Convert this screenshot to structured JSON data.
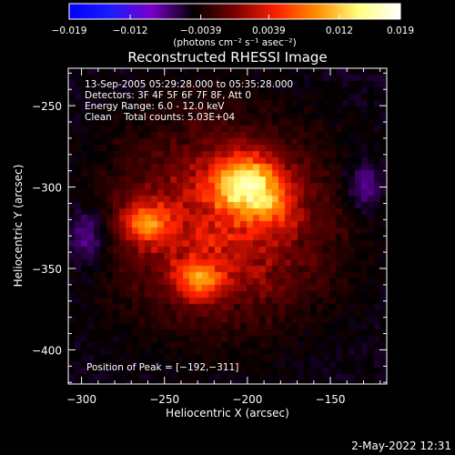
{
  "colorbar": {
    "ticks": [
      "−0.019",
      "−0.012",
      "−0.0039",
      "0.0039",
      "0.012",
      "0.019"
    ],
    "tick_values": [
      -0.019,
      -0.012,
      -0.0039,
      0.0039,
      0.012,
      0.019
    ],
    "range": [
      -0.019,
      0.019
    ],
    "units": "(photons cm⁻² s⁻¹ asec⁻²)",
    "colors": [
      "#0000ff",
      "#1c1cff",
      "#7a00c8",
      "#000000",
      "#7a0000",
      "#ff2000",
      "#ff9000",
      "#ffff80",
      "#ffffff"
    ]
  },
  "chart_data": {
    "type": "heatmap",
    "title": "Reconstructed RHESSI Image",
    "xlabel": "Heliocentric X (arcsec)",
    "ylabel": "Heliocentric Y (arcsec)",
    "xlim": [
      -308,
      -116
    ],
    "ylim": [
      -421,
      -227
    ],
    "xticks": [
      -300,
      -250,
      -200,
      -150
    ],
    "xtick_labels": [
      "−300",
      "−250",
      "−200",
      "−150"
    ],
    "yticks": [
      -250,
      -300,
      -350,
      -400
    ],
    "ytick_labels": [
      "−250",
      "−300",
      "−350",
      "−400"
    ],
    "peak": [
      -192,
      -311
    ],
    "sources": [
      {
        "x": -200,
        "y": -297,
        "peak": 0.019
      },
      {
        "x": -261,
        "y": -322,
        "peak": 0.014
      },
      {
        "x": -229,
        "y": -357,
        "peak": 0.013
      }
    ],
    "annotations": [
      "13-Sep-2005 05:29:28.000 to 05:35:28.000",
      "Detectors: 3F 4F 5F 6F 7F 8F, Att 0",
      "Energy Range: 6.0 - 12.0 keV",
      "Clean    Total counts: 5.03E+04",
      "Position of Peak = [−192,−311]"
    ]
  },
  "footer": {
    "timestamp": "2-May-2022 12:31"
  }
}
